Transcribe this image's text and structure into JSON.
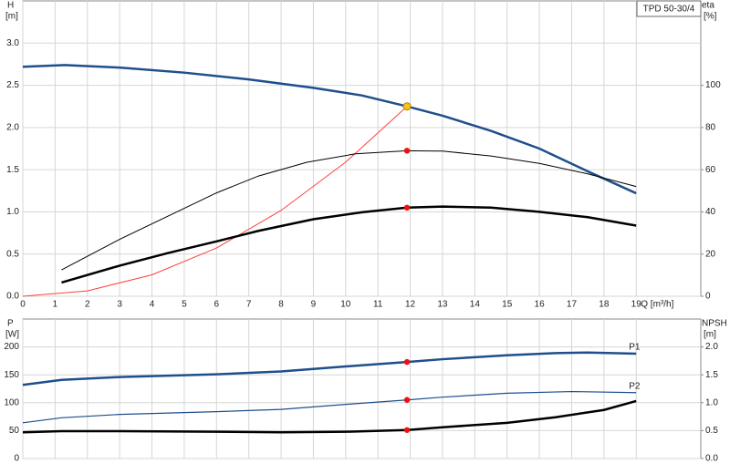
{
  "chart_data": [
    {
      "type": "line",
      "annotation": "TPD 50-30/4",
      "ylabel": "H",
      "yunit": "[m]",
      "y2label": "eta",
      "y2unit": "[%]",
      "xlabel": "Q [m³/h]",
      "xlim": [
        0,
        21
      ],
      "xticks": [
        0,
        1,
        2,
        3,
        4,
        5,
        6,
        7,
        8,
        9,
        10,
        11,
        12,
        13,
        14,
        15,
        16,
        17,
        18,
        19
      ],
      "xtick_labels": true,
      "ylim": [
        0,
        3.5
      ],
      "yticks": [
        {
          "value": 0,
          "label": "0.0"
        },
        {
          "value": 0.5,
          "label": "0.5"
        },
        {
          "value": 1,
          "label": "1.0"
        },
        {
          "value": 1.5,
          "label": "1.5"
        },
        {
          "value": 2,
          "label": "2.0"
        },
        {
          "value": 2.5,
          "label": "2.5"
        },
        {
          "value": 3,
          "label": "3.0"
        }
      ],
      "y2lim": [
        0,
        140
      ],
      "y2ticks": [
        0,
        20,
        40,
        60,
        80,
        100
      ],
      "grid": true,
      "series": [
        {
          "color": "#1f4e8c",
          "line_width": 2.5,
          "axis": "y",
          "x": [
            0,
            1.3,
            3,
            5,
            7,
            9,
            10.5,
            11.9,
            13,
            14.5,
            16,
            17.5,
            19
          ],
          "values": [
            2.72,
            2.74,
            2.71,
            2.65,
            2.57,
            2.47,
            2.38,
            2.25,
            2.14,
            1.96,
            1.75,
            1.48,
            1.22
          ]
        },
        {
          "color": "#ff4040",
          "line_width": 1,
          "axis": "y",
          "x": [
            0,
            2,
            4,
            6,
            8,
            10,
            11.9
          ],
          "values": [
            0,
            0.064,
            0.254,
            0.572,
            1.017,
            1.589,
            2.25
          ]
        },
        {
          "color": "#000000",
          "line_width": 1,
          "axis": "y2",
          "x": [
            1.2,
            3,
            4.5,
            6,
            7.3,
            8.8,
            10.3,
            11.9,
            13,
            14.5,
            16,
            17.5,
            19
          ],
          "values": [
            12.5,
            27,
            38,
            49,
            57,
            63.5,
            67.5,
            69,
            68.8,
            66.5,
            63,
            58,
            52
          ]
        },
        {
          "color": "#000000",
          "line_width": 2.5,
          "axis": "y2",
          "x": [
            1.2,
            3,
            4.5,
            6,
            7.3,
            9,
            10.5,
            11.9,
            13,
            14.5,
            16,
            17.5,
            19
          ],
          "values": [
            6.5,
            14.5,
            20.5,
            26,
            31,
            36.5,
            39.8,
            42,
            42.5,
            42,
            40,
            37.5,
            33.5
          ]
        }
      ],
      "markers": [
        {
          "x": 11.9,
          "value": 2.25,
          "axis": "y",
          "color": "#f5c518"
        },
        {
          "x": 11.9,
          "value": 69,
          "axis": "y2",
          "color": "#ee1111"
        },
        {
          "x": 11.9,
          "value": 42,
          "axis": "y2",
          "color": "#ee1111"
        }
      ]
    },
    {
      "type": "line",
      "ylabel": "P",
      "yunit": "[W]",
      "y2label": "NPSH",
      "y2unit": "[m]",
      "xlim": [
        0,
        21
      ],
      "xticks": [
        0,
        1,
        2,
        3,
        4,
        5,
        6,
        7,
        8,
        9,
        10,
        11,
        12,
        13,
        14,
        15,
        16,
        17,
        18,
        19
      ],
      "xtick_labels": false,
      "ylim": [
        0,
        250
      ],
      "yticks": [
        0,
        50,
        100,
        150,
        200
      ],
      "y2lim": [
        0,
        2.5
      ],
      "y2ticks": [
        {
          "value": 0,
          "label": "0.0"
        },
        {
          "value": 0.5,
          "label": "0.5"
        },
        {
          "value": 1,
          "label": "1.0"
        },
        {
          "value": 1.5,
          "label": "1.5"
        },
        {
          "value": 2,
          "label": "2.0"
        }
      ],
      "grid": true,
      "series": [
        {
          "name": "P1",
          "color": "#1f4e8c",
          "line_width": 2.5,
          "axis": "y",
          "x": [
            0,
            1.2,
            3,
            6,
            8,
            10,
            11.9,
            13,
            15,
            16.5,
            17.5,
            19
          ],
          "values": [
            132,
            141,
            146,
            151,
            156,
            165,
            173,
            178,
            185,
            189,
            190,
            188
          ]
        },
        {
          "name": "P2",
          "color": "#1f4e8c",
          "line_width": 1.2,
          "axis": "y",
          "x": [
            0,
            1.2,
            3,
            6,
            8,
            10,
            11.9,
            13,
            15,
            17,
            19
          ],
          "values": [
            64,
            73,
            79,
            84,
            88,
            97,
            105,
            110,
            117,
            120,
            118
          ]
        },
        {
          "color": "#000000",
          "line_width": 2.5,
          "axis": "y2",
          "x": [
            0,
            1.2,
            3,
            6,
            8,
            10,
            11.9,
            13,
            15,
            16.5,
            18,
            19
          ],
          "values": [
            0.47,
            0.49,
            0.49,
            0.48,
            0.47,
            0.48,
            0.51,
            0.56,
            0.64,
            0.74,
            0.87,
            1.03
          ]
        }
      ],
      "markers": [
        {
          "x": 11.9,
          "value": 173,
          "axis": "y",
          "color": "#ee1111"
        },
        {
          "x": 11.9,
          "value": 105,
          "axis": "y",
          "color": "#ee1111"
        },
        {
          "x": 11.9,
          "value": 0.51,
          "axis": "y2",
          "color": "#ee1111"
        }
      ]
    }
  ]
}
